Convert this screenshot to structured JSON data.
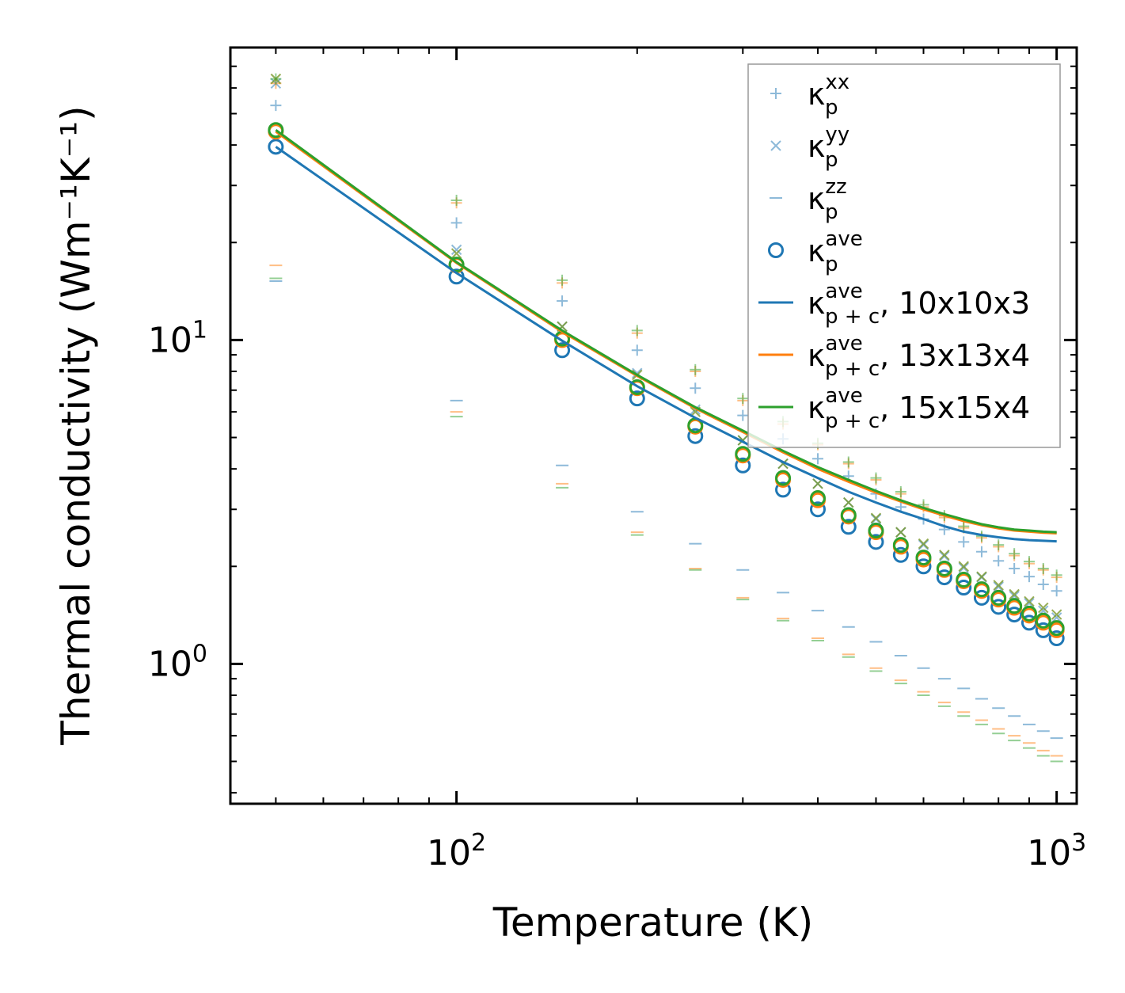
{
  "chart_data": {
    "type": "scatter",
    "title": "",
    "xlabel": "Temperature (K)",
    "ylabel": "Thermal conductivity (Wm⁻¹K⁻¹)",
    "xscale": "log",
    "yscale": "log",
    "xlim": [
      42,
      1080
    ],
    "ylim": [
      0.37,
      80
    ],
    "x_ticks": [
      {
        "base": "10",
        "exp": "2",
        "value": 100
      },
      {
        "base": "10",
        "exp": "3",
        "value": 1000
      }
    ],
    "y_ticks": [
      {
        "base": "10",
        "exp": "0",
        "value": 1
      },
      {
        "base": "10",
        "exp": "1",
        "value": 10
      }
    ],
    "x": [
      50,
      100,
      150,
      200,
      250,
      300,
      350,
      400,
      450,
      500,
      550,
      600,
      650,
      700,
      750,
      800,
      850,
      900,
      950,
      1000
    ],
    "grid": false,
    "legend_position": "top-right",
    "legend": [
      {
        "sym": "κ",
        "sub": "p",
        "sup": "xx",
        "extra": "",
        "marker": "plus",
        "color": "#1f77b4"
      },
      {
        "sym": "κ",
        "sub": "p",
        "sup": "yy",
        "extra": "",
        "marker": "x",
        "color": "#1f77b4"
      },
      {
        "sym": "κ",
        "sub": "p",
        "sup": "zz",
        "extra": "",
        "marker": "dash",
        "color": "#1f77b4"
      },
      {
        "sym": "κ",
        "sub": "p",
        "sup": "ave",
        "extra": "",
        "marker": "circle",
        "color": "#1f77b4"
      },
      {
        "sym": "κ",
        "sub": "p + c",
        "sup": "ave",
        "extra": ", 10x10x3",
        "marker": "line",
        "color": "#1f77b4"
      },
      {
        "sym": "κ",
        "sub": "p + c",
        "sup": "ave",
        "extra": ", 13x13x4",
        "marker": "line",
        "color": "#ff7f0e"
      },
      {
        "sym": "κ",
        "sub": "p + c",
        "sup": "ave",
        "extra": ", 15x15x4",
        "marker": "line",
        "color": "#2ca02c"
      }
    ],
    "series": [
      {
        "name": "10x10x3",
        "color": "#1f77b4",
        "kappa_xx": [
          53,
          23,
          13.2,
          9.3,
          7.1,
          5.85,
          4.95,
          4.3,
          3.8,
          3.35,
          3.05,
          2.8,
          2.6,
          2.38,
          2.22,
          2.08,
          1.97,
          1.86,
          1.76,
          1.68
        ],
        "kappa_yy": [
          62,
          19,
          11,
          7.9,
          6.1,
          4.9,
          4.15,
          3.6,
          3.15,
          2.8,
          2.55,
          2.33,
          2.15,
          1.98,
          1.85,
          1.73,
          1.62,
          1.54,
          1.46,
          1.39
        ],
        "kappa_zz": [
          15.2,
          6.5,
          4.1,
          2.95,
          2.35,
          1.95,
          1.66,
          1.46,
          1.3,
          1.17,
          1.06,
          0.97,
          0.9,
          0.84,
          0.78,
          0.73,
          0.69,
          0.65,
          0.62,
          0.59
        ],
        "kappa_ave": [
          39.5,
          15.7,
          9.3,
          6.6,
          5.05,
          4.1,
          3.45,
          3.0,
          2.65,
          2.38,
          2.17,
          2.0,
          1.85,
          1.72,
          1.6,
          1.5,
          1.42,
          1.34,
          1.27,
          1.2
        ],
        "kappa_pc": [
          39.5,
          16.1,
          9.95,
          7.2,
          5.75,
          4.85,
          4.2,
          3.75,
          3.4,
          3.15,
          2.95,
          2.8,
          2.66,
          2.56,
          2.5,
          2.46,
          2.43,
          2.41,
          2.4,
          2.39
        ]
      },
      {
        "name": "13x13x4",
        "color": "#ff7f0e",
        "kappa_xx": [
          62,
          26.5,
          15,
          10.5,
          8.0,
          6.5,
          5.5,
          4.75,
          4.15,
          3.7,
          3.35,
          3.05,
          2.83,
          2.63,
          2.45,
          2.3,
          2.16,
          2.04,
          1.95,
          1.85
        ],
        "kappa_yy": [
          64,
          18.5,
          11,
          7.8,
          6.0,
          4.9,
          4.15,
          3.6,
          3.15,
          2.82,
          2.55,
          2.35,
          2.17,
          2.0,
          1.86,
          1.75,
          1.64,
          1.56,
          1.49,
          1.42
        ],
        "kappa_zz": [
          17,
          6.0,
          3.6,
          2.55,
          1.97,
          1.6,
          1.38,
          1.2,
          1.07,
          0.97,
          0.89,
          0.82,
          0.76,
          0.71,
          0.67,
          0.63,
          0.6,
          0.57,
          0.54,
          0.52
        ],
        "kappa_ave": [
          44,
          17,
          10,
          7.1,
          5.4,
          4.4,
          3.7,
          3.2,
          2.85,
          2.55,
          2.3,
          2.1,
          1.95,
          1.8,
          1.68,
          1.58,
          1.49,
          1.41,
          1.34,
          1.27
        ],
        "kappa_pc": [
          44,
          17.3,
          10.6,
          7.75,
          6.15,
          5.2,
          4.5,
          4.0,
          3.65,
          3.38,
          3.17,
          3.0,
          2.87,
          2.76,
          2.68,
          2.62,
          2.58,
          2.56,
          2.54,
          2.53
        ]
      },
      {
        "name": "15x15x4",
        "color": "#2ca02c",
        "kappa_xx": [
          64,
          27,
          15.3,
          10.7,
          8.1,
          6.6,
          5.6,
          4.8,
          4.2,
          3.75,
          3.4,
          3.1,
          2.87,
          2.66,
          2.48,
          2.33,
          2.19,
          2.07,
          1.97,
          1.88
        ],
        "kappa_yy": [
          64,
          18.5,
          11,
          7.8,
          6.0,
          4.9,
          4.15,
          3.6,
          3.15,
          2.82,
          2.55,
          2.35,
          2.17,
          2.0,
          1.86,
          1.75,
          1.64,
          1.56,
          1.49,
          1.42
        ],
        "kappa_zz": [
          15.5,
          5.8,
          3.5,
          2.5,
          1.95,
          1.58,
          1.36,
          1.18,
          1.05,
          0.95,
          0.87,
          0.8,
          0.74,
          0.69,
          0.65,
          0.61,
          0.58,
          0.55,
          0.52,
          0.5
        ],
        "kappa_ave": [
          44.5,
          17.1,
          10.1,
          7.15,
          5.45,
          4.45,
          3.75,
          3.25,
          2.88,
          2.58,
          2.33,
          2.13,
          1.97,
          1.82,
          1.7,
          1.6,
          1.51,
          1.43,
          1.36,
          1.29
        ],
        "kappa_pc": [
          44.5,
          17.4,
          10.7,
          7.8,
          6.2,
          5.25,
          4.55,
          4.05,
          3.7,
          3.42,
          3.2,
          3.03,
          2.9,
          2.79,
          2.7,
          2.64,
          2.6,
          2.58,
          2.56,
          2.55
        ]
      }
    ]
  }
}
